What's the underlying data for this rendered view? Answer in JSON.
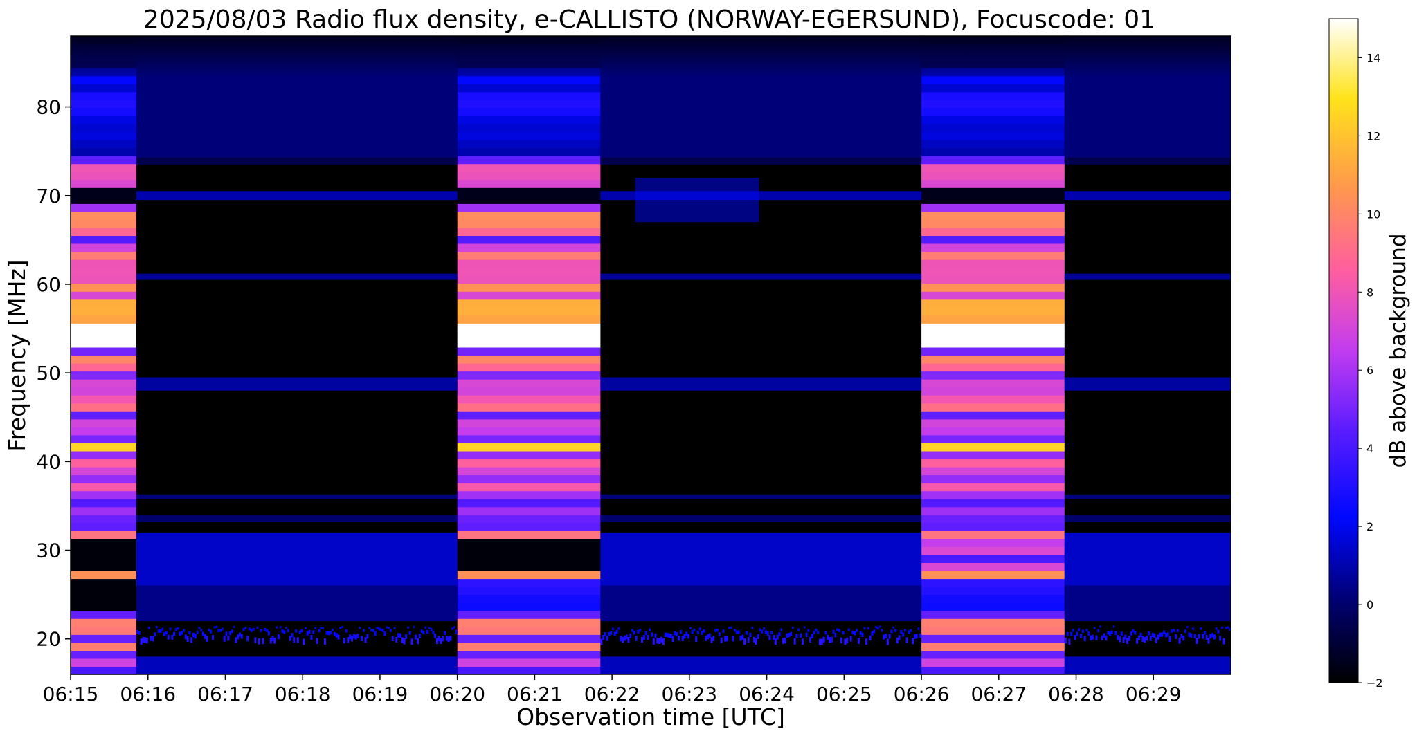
{
  "chart_data": {
    "type": "heatmap",
    "title": "2025/08/03  Radio flux density, e-CALLISTO (NORWAY-EGERSUND), Focuscode: 01",
    "xlabel": "Observation time [UTC]",
    "ylabel": "Frequency [MHz]",
    "colorbar_label": "dB above background",
    "colormap": "gnuplot2",
    "x_range_minutes": [
      0,
      15
    ],
    "x_tick_minutes": [
      0,
      1,
      2,
      3,
      4,
      5,
      6,
      7,
      8,
      9,
      10,
      11,
      12,
      13,
      14
    ],
    "x_tick_labels": [
      "06:15",
      "06:16",
      "06:17",
      "06:18",
      "06:19",
      "06:20",
      "06:21",
      "06:22",
      "06:23",
      "06:24",
      "06:25",
      "06:26",
      "06:27",
      "06:28",
      "06:29"
    ],
    "y_range_mhz": [
      16,
      88
    ],
    "y_ticks": [
      20,
      30,
      40,
      50,
      60,
      70,
      80
    ],
    "y_tick_labels": [
      "20",
      "30",
      "40",
      "50",
      "60",
      "70",
      "80"
    ],
    "colorbar_range_db": [
      -2,
      15
    ],
    "colorbar_ticks": [
      -2,
      0,
      2,
      4,
      6,
      8,
      10,
      12,
      14
    ],
    "colorbar_tick_labels": [
      "−2",
      "0",
      "2",
      "4",
      "6",
      "8",
      "10",
      "12",
      "14"
    ],
    "calibration_segments_minutes": [
      [
        0,
        0.85
      ],
      [
        5.0,
        6.85
      ],
      [
        11.0,
        12.85
      ]
    ],
    "notable_features": [
      {
        "label": "strong calibration band",
        "freq_mhz": 54,
        "db": 15
      },
      {
        "label": "weak burst",
        "time_minutes": [
          7.3,
          8.9
        ],
        "freq_mhz": [
          67,
          72
        ],
        "db": 2
      }
    ]
  }
}
